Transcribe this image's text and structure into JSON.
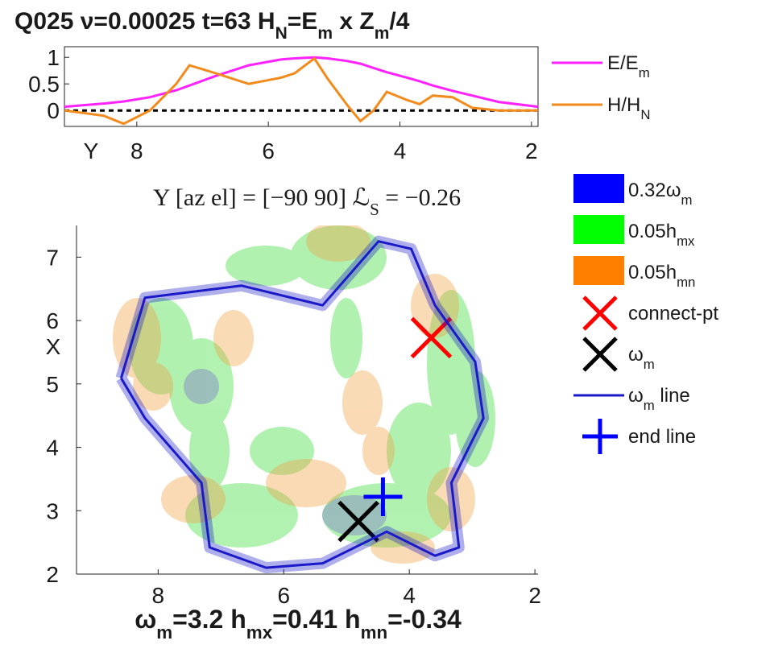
{
  "chart_data": [
    {
      "type": "line",
      "title": [
        "Q025 ",
        "ν",
        "=0.00025  t=63  H",
        {
          "sub": "N"
        },
        "=E",
        {
          "sub": "m"
        },
        " x Z",
        {
          "sub": "m"
        },
        "/4"
      ],
      "x_label": "Y",
      "x": [
        9.1,
        8.5,
        8.2,
        7.8,
        7.4,
        7.2,
        6.8,
        6.3,
        5.8,
        5.6,
        5.3,
        5.1,
        4.8,
        4.6,
        4.4,
        4.2,
        3.9,
        3.7,
        3.5,
        3.2,
        2.9,
        2.5,
        1.9
      ],
      "series": [
        {
          "name": [
            "E/E",
            {
              "sub": "m"
            }
          ],
          "color": "#ff22ff",
          "values": [
            0.07,
            0.13,
            0.17,
            0.25,
            0.38,
            0.47,
            0.65,
            0.85,
            0.96,
            0.98,
            1.0,
            0.98,
            0.93,
            0.88,
            0.8,
            0.72,
            0.62,
            0.55,
            0.47,
            0.37,
            0.28,
            0.16,
            0.07
          ]
        },
        {
          "name": [
            "H/H",
            {
              "sub": "N"
            }
          ],
          "color": "#f28a1c",
          "values": [
            0.0,
            -0.1,
            -0.25,
            0.0,
            0.5,
            0.85,
            0.7,
            0.5,
            0.62,
            0.7,
            0.98,
            0.6,
            0.1,
            -0.2,
            0.0,
            0.35,
            0.2,
            0.12,
            0.28,
            0.25,
            0.05,
            0.0,
            0.0
          ]
        }
      ],
      "zero_line": 0,
      "xlim": [
        9.1,
        1.9
      ],
      "xticks": [
        8,
        6,
        4,
        2
      ],
      "ylim": [
        -0.3,
        1.2
      ],
      "yticks": [
        0,
        0.5,
        1
      ]
    },
    {
      "type": "scatter",
      "subtitle": [
        "Y [az el] = [−90 90]  ℒ",
        {
          "sub": "S"
        },
        " = −0.26"
      ],
      "y_label": "X",
      "caption": [
        "ω",
        {
          "sub": "m"
        },
        "=3.2  h",
        {
          "sub": "mx"
        },
        "=0.41  h",
        {
          "sub": "mn"
        },
        "=-0.34"
      ],
      "xlim": [
        9.3,
        1.95
      ],
      "xticks": [
        8,
        6,
        4,
        2
      ],
      "ylim": [
        2,
        7.5
      ],
      "yticks": [
        2,
        3,
        4,
        5,
        6,
        7
      ],
      "series": [
        {
          "name": [
            "0.32ω",
            {
              "sub": "m"
            }
          ],
          "color": "#0000ff",
          "kind": "isosurface"
        },
        {
          "name": [
            "0.05h",
            {
              "sub": "mx"
            }
          ],
          "color": "#00ff00",
          "kind": "isosurface"
        },
        {
          "name": [
            "0.05h",
            {
              "sub": "mn"
            }
          ],
          "color": "#ff8000",
          "kind": "isosurface"
        },
        {
          "name": [
            "connect-pt"
          ],
          "color": "#ff0000",
          "kind": "x-marker",
          "x": [
            3.65
          ],
          "y": [
            5.73
          ]
        },
        {
          "name": [
            "ω",
            {
              "sub": "m"
            }
          ],
          "color": "#000000",
          "kind": "x-marker",
          "x": [
            4.81
          ],
          "y": [
            2.83
          ]
        },
        {
          "name": [
            "ω",
            {
              "sub": "m"
            },
            " line"
          ],
          "color": "#1a1ac8",
          "kind": "line",
          "x": [
            8.59,
            8.21,
            6.67,
            5.38,
            4.49,
            3.97,
            3.59,
            2.95,
            2.82,
            3.33,
            3.21,
            3.59,
            4.36,
            5.38,
            6.28,
            7.18,
            7.31,
            8.21,
            8.59
          ],
          "y": [
            5.09,
            6.36,
            6.55,
            6.24,
            7.25,
            7.13,
            6.24,
            5.35,
            4.46,
            3.44,
            2.42,
            2.29,
            2.67,
            2.17,
            2.1,
            2.42,
            3.44,
            4.46,
            5.09
          ]
        },
        {
          "name": [
            "end line"
          ],
          "color": "#0000ff",
          "kind": "plus-marker",
          "x": [
            4.42
          ],
          "y": [
            3.22
          ]
        }
      ]
    }
  ]
}
